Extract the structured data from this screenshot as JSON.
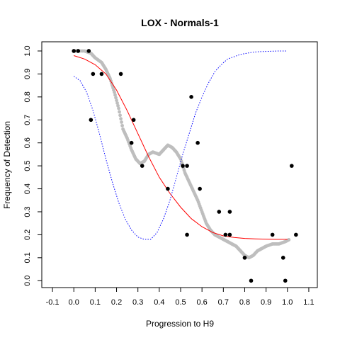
{
  "chart_data": {
    "type": "scatter",
    "title": "LOX - Normals-1",
    "xlabel": "Progression to H9",
    "ylabel": "Frequency of Detection",
    "xlim": [
      -0.15,
      1.14
    ],
    "ylim": [
      -0.03,
      1.04
    ],
    "xticks": [
      "-0.1",
      "0.0",
      "0.1",
      "0.2",
      "0.3",
      "0.4",
      "0.5",
      "0.6",
      "0.7",
      "0.8",
      "0.9",
      "1.0",
      "1.1"
    ],
    "yticks": [
      "0.0",
      "0.1",
      "0.2",
      "0.3",
      "0.4",
      "0.5",
      "0.6",
      "0.7",
      "0.8",
      "0.9",
      "1.0"
    ],
    "grid": false,
    "legend": "none",
    "colors": {
      "points": "#000000",
      "smooth": "#bebebe",
      "fit": "#ff0000",
      "spread": "#0000ff"
    },
    "series": [
      {
        "kind": "points",
        "x": [
          0.0,
          0.02,
          0.07,
          0.09,
          0.08,
          0.13,
          0.22,
          0.28,
          0.27,
          0.32,
          0.44,
          0.51,
          0.53,
          0.55,
          0.58,
          0.59,
          0.53,
          0.68,
          0.71,
          0.73,
          0.73,
          0.8,
          0.83,
          0.93,
          0.98,
          0.99,
          1.02,
          1.04
        ],
        "y": [
          1.0,
          1.0,
          1.0,
          0.9,
          0.7,
          0.9,
          0.9,
          0.7,
          0.6,
          0.5,
          0.4,
          0.5,
          0.5,
          0.8,
          0.6,
          0.4,
          0.2,
          0.3,
          0.2,
          0.3,
          0.2,
          0.1,
          0.0,
          0.2,
          0.1,
          0.0,
          0.5,
          0.2
        ]
      },
      {
        "kind": "smooth",
        "x": [
          0.0,
          0.05,
          0.08,
          0.1,
          0.13,
          0.15,
          0.17,
          0.19,
          0.21,
          0.23,
          0.25,
          0.27,
          0.29,
          0.31,
          0.33,
          0.35,
          0.37,
          0.4,
          0.42,
          0.44,
          0.46,
          0.48,
          0.5,
          0.52,
          0.54,
          0.56,
          0.58,
          0.6,
          0.62,
          0.64,
          0.66,
          0.68,
          0.7,
          0.72,
          0.74,
          0.76,
          0.78,
          0.8,
          0.82,
          0.84,
          0.86,
          0.88,
          0.9,
          0.93,
          0.96,
          0.99,
          1.01
        ],
        "y": [
          1.0,
          1.0,
          0.99,
          0.97,
          0.95,
          0.92,
          0.88,
          0.82,
          0.75,
          0.66,
          0.62,
          0.57,
          0.53,
          0.51,
          0.52,
          0.55,
          0.56,
          0.55,
          0.57,
          0.59,
          0.58,
          0.56,
          0.53,
          0.47,
          0.43,
          0.39,
          0.35,
          0.3,
          0.25,
          0.22,
          0.2,
          0.19,
          0.18,
          0.17,
          0.16,
          0.15,
          0.13,
          0.11,
          0.1,
          0.11,
          0.13,
          0.14,
          0.15,
          0.16,
          0.16,
          0.17,
          0.18
        ]
      },
      {
        "kind": "fit",
        "x": [
          0.0,
          0.05,
          0.1,
          0.15,
          0.2,
          0.25,
          0.3,
          0.35,
          0.4,
          0.45,
          0.5,
          0.55,
          0.6,
          0.65,
          0.7,
          0.75,
          0.8,
          0.85,
          0.9,
          0.95,
          1.0
        ],
        "y": [
          0.98,
          0.965,
          0.94,
          0.9,
          0.83,
          0.74,
          0.64,
          0.54,
          0.45,
          0.38,
          0.32,
          0.27,
          0.235,
          0.21,
          0.195,
          0.188,
          0.184,
          0.182,
          0.181,
          0.18,
          0.18
        ]
      },
      {
        "kind": "spread",
        "x": [
          0.0,
          0.03,
          0.06,
          0.09,
          0.12,
          0.15,
          0.18,
          0.21,
          0.24,
          0.27,
          0.3,
          0.33,
          0.36,
          0.39,
          0.42,
          0.45,
          0.48,
          0.51,
          0.54,
          0.57,
          0.6,
          0.63,
          0.66,
          0.69,
          0.72,
          0.75,
          0.78,
          0.81,
          0.84,
          0.87,
          0.9,
          0.93,
          0.96,
          1.0
        ],
        "y": [
          0.89,
          0.87,
          0.82,
          0.74,
          0.64,
          0.53,
          0.43,
          0.34,
          0.27,
          0.22,
          0.19,
          0.18,
          0.18,
          0.21,
          0.27,
          0.35,
          0.45,
          0.55,
          0.64,
          0.73,
          0.8,
          0.86,
          0.91,
          0.94,
          0.965,
          0.975,
          0.985,
          0.99,
          0.995,
          0.997,
          0.998,
          0.999,
          1.0,
          1.0
        ]
      }
    ]
  }
}
